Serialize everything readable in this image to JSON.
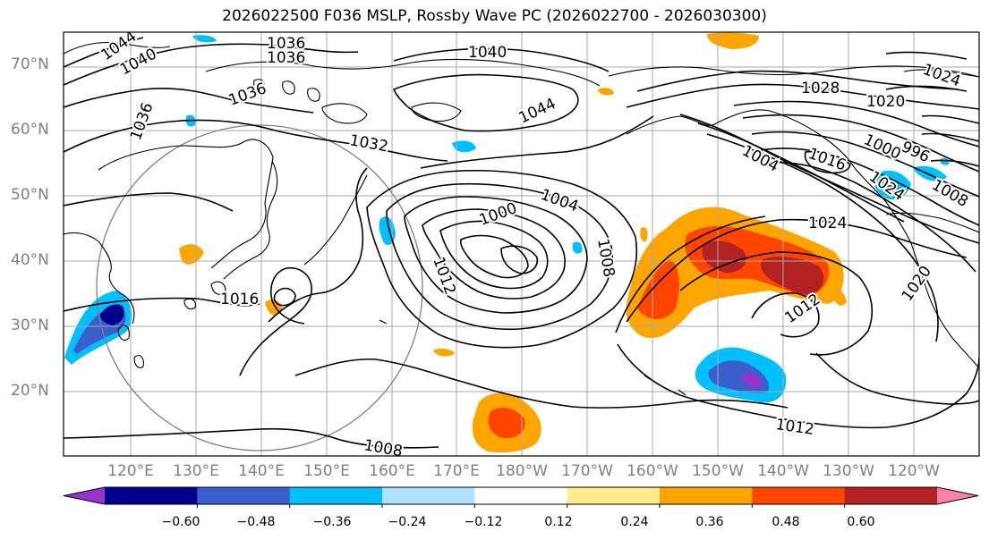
{
  "title": "2026022500 F036 MSLP, Rossby Wave PC (2026022700 - 2026030300)",
  "latitude_labels": [
    "70°N",
    "60°N",
    "50°N",
    "40°N",
    "30°N",
    "20°N"
  ],
  "longitude_labels": [
    "120°E",
    "130°E",
    "140°E",
    "150°E",
    "160°E",
    "170°E",
    "180°W",
    "170°W",
    "160°W",
    "150°W",
    "140°W",
    "130°W",
    "120°W"
  ],
  "isobar_labels": [
    "1044",
    "1040",
    "1036",
    "1036",
    "1036",
    "1036",
    "1032",
    "1040",
    "1044",
    "1028",
    "1020",
    "1024",
    "1004",
    "1004",
    "1000",
    "1008",
    "1012",
    "1024",
    "1012",
    "1020",
    "1016",
    "1012",
    "1008",
    "1000",
    "996",
    "1008",
    "1016",
    "1024"
  ],
  "colorbar": {
    "tick_labels": [
      "−0.60",
      "−0.48",
      "−0.36",
      "−0.24",
      "−0.12",
      "0.12",
      "0.24",
      "0.36",
      "0.48",
      "0.60"
    ],
    "colors": [
      "#9932cc",
      "#00008b",
      "#3a5fcd",
      "#00bfff",
      "#b0e2ff",
      "#ffffff",
      "#ffec8b",
      "#ffa500",
      "#ff4500",
      "#b22222",
      "#ff82ab"
    ]
  }
}
